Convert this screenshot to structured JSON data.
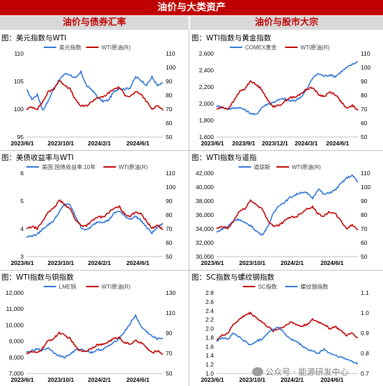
{
  "header": {
    "title": "油价与大类资产",
    "left_section": "油价与债券汇率",
    "right_section": "油价与股市大宗"
  },
  "footer": {
    "watermark": "公众号 · 能源研发中心"
  },
  "colors": {
    "blue": "#2e75d6",
    "red": "#c00000",
    "accent": "#c00000"
  },
  "chart_data": [
    {
      "type": "line",
      "title": "图：美元指数与WTI",
      "x_ticks": [
        "2023/6/1",
        "2023/10/1",
        "2024/2/1",
        "2024/6/1"
      ],
      "y_left": {
        "ticks": [
          "95",
          "100",
          "105",
          "110"
        ],
        "range": [
          95,
          110
        ]
      },
      "y_right": {
        "ticks": [
          "50",
          "60",
          "70",
          "80",
          "90",
          "100",
          "110"
        ],
        "range": [
          50,
          110
        ]
      },
      "legend_position": "top",
      "series": [
        {
          "name": "美元指数",
          "axis": "left",
          "color": "#2e75d6",
          "values": [
            103.5,
            101.8,
            102.6,
            99.8,
            101.5,
            103.8,
            105.2,
            106.4,
            106.2,
            105.5,
            106.7,
            104.2,
            103.5,
            102.2,
            101.4,
            101.6,
            103.1,
            103.8,
            103.6,
            103.9,
            105.8,
            105.2,
            104.3,
            105.8,
            104.2,
            104.7
          ]
        },
        {
          "name": "WTI原油(R)",
          "axis": "right",
          "color": "#c00000",
          "values": [
            70,
            71.5,
            70.2,
            75.5,
            82.5,
            84.5,
            90.5,
            87.5,
            84.5,
            76.5,
            72.2,
            72.4,
            75.5,
            78.5,
            78.5,
            81.5,
            84.5,
            85.8,
            80.5,
            79.2,
            82.3,
            80.7,
            75.5,
            70.2,
            72.8,
            69.2
          ]
        }
      ]
    },
    {
      "type": "line",
      "title": "图：WTI指数与黄金指数",
      "x_ticks": [
        "2023/6/1",
        "2023/9/1",
        "2023/12/1",
        "2024/3/1",
        "2024/6/1"
      ],
      "y_left": {
        "ticks": [
          "1,600",
          "1,800",
          "2,000",
          "2,200",
          "2,400",
          "2,600"
        ],
        "range": [
          1600,
          2600
        ]
      },
      "y_right": {
        "ticks": [
          "50",
          "60",
          "70",
          "80",
          "90",
          "100",
          "110"
        ],
        "range": [
          50,
          110
        ]
      },
      "legend_position": "top",
      "series": [
        {
          "name": "COMEX黄金",
          "axis": "left",
          "color": "#2e75d6",
          "values": [
            1975,
            1955,
            1935,
            1945,
            1955,
            1925,
            1885,
            1865,
            1955,
            1995,
            2015,
            2045,
            2060,
            2030,
            2040,
            2085,
            2175,
            2310,
            2360,
            2330,
            2345,
            2325,
            2380,
            2430,
            2470,
            2505
          ]
        },
        {
          "name": "WTI原油(R)",
          "axis": "right",
          "color": "#c00000",
          "values": [
            70,
            71.5,
            70.2,
            75.5,
            82.5,
            84.5,
            90.5,
            87.5,
            84.5,
            76.5,
            72.2,
            72.4,
            75.5,
            78.5,
            78.5,
            81.5,
            84.5,
            85.8,
            80.5,
            79.2,
            82.3,
            80.7,
            75.5,
            70.2,
            72.8,
            69.2
          ]
        }
      ]
    },
    {
      "type": "line",
      "title": "图：美债收益率与WTI",
      "x_ticks": [
        "2023/6/1",
        "2023/10/1",
        "2024/2/1",
        "2024/6/1"
      ],
      "y_left": {
        "ticks": [
          "3",
          "4",
          "5",
          "6"
        ],
        "range": [
          3,
          6
        ]
      },
      "y_right": {
        "ticks": [
          "50",
          "60",
          "70",
          "80",
          "90",
          "100",
          "110"
        ],
        "range": [
          50,
          110
        ]
      },
      "legend_position": "top",
      "series": [
        {
          "name": "美国:国债收益率:10年",
          "axis": "left",
          "color": "#2e75d6",
          "values": [
            3.7,
            3.75,
            3.8,
            4.0,
            4.15,
            4.3,
            4.6,
            4.9,
            4.85,
            4.45,
            4.05,
            3.95,
            4.1,
            4.25,
            4.25,
            4.3,
            4.55,
            4.65,
            4.45,
            4.35,
            4.45,
            4.3,
            4.05,
            3.85,
            4.05,
            4.2
          ]
        },
        {
          "name": "WTI原油(R)",
          "axis": "right",
          "color": "#c00000",
          "values": [
            70,
            71.5,
            70.2,
            75.5,
            82.5,
            84.5,
            90.5,
            87.5,
            84.5,
            76.5,
            72.2,
            72.4,
            75.5,
            78.5,
            78.5,
            81.5,
            84.5,
            85.8,
            80.5,
            79.2,
            82.3,
            80.7,
            75.5,
            70.2,
            72.8,
            69.2
          ]
        }
      ]
    },
    {
      "type": "line",
      "title": "图：WTI指数与道指",
      "x_ticks": [
        "2023/6/1",
        "2023/10/1",
        "2024/2/1",
        "2024/6/1"
      ],
      "y_left": {
        "ticks": [
          "30,000",
          "32,000",
          "34,000",
          "36,000",
          "38,000",
          "40,000",
          "42,000"
        ],
        "range": [
          30000,
          42000
        ]
      },
      "y_right": {
        "ticks": [
          "50",
          "60",
          "70",
          "80",
          "90",
          "100",
          "110"
        ],
        "range": [
          50,
          110
        ]
      },
      "legend_position": "top",
      "series": [
        {
          "name": "道琼斯",
          "axis": "left",
          "color": "#2e75d6",
          "values": [
            33500,
            34000,
            34300,
            35200,
            35400,
            34800,
            34500,
            33700,
            33100,
            34200,
            36100,
            37400,
            37800,
            38500,
            38900,
            39300,
            39100,
            38400,
            39800,
            38900,
            39200,
            39600,
            40500,
            41300,
            41700,
            40700
          ]
        },
        {
          "name": "WTI原油(R)",
          "axis": "right",
          "color": "#c00000",
          "values": [
            70,
            71.5,
            70.2,
            75.5,
            82.5,
            84.5,
            90.5,
            87.5,
            84.5,
            76.5,
            72.2,
            72.4,
            75.5,
            78.5,
            78.5,
            81.5,
            84.5,
            85.8,
            80.5,
            79.2,
            82.3,
            80.7,
            75.5,
            70.2,
            72.8,
            69.2
          ]
        }
      ]
    },
    {
      "type": "line",
      "title": "图：WTI指数与铜指数",
      "x_ticks": [
        "2023/6/1",
        "2023/10/1",
        "2024/2/1",
        "2024/6/1"
      ],
      "y_left": {
        "ticks": [
          "7,000",
          "8,000",
          "9,000",
          "10,000",
          "11,000",
          "12,000"
        ],
        "range": [
          7000,
          12000
        ]
      },
      "y_right": {
        "ticks": [
          "50",
          "70",
          "90",
          "110",
          "130"
        ],
        "range": [
          50,
          130
        ]
      },
      "legend_position": "top",
      "series": [
        {
          "name": "LME铜",
          "axis": "left",
          "color": "#2e75d6",
          "values": [
            8300,
            8400,
            8500,
            8450,
            8600,
            8300,
            8100,
            8000,
            8200,
            8450,
            8500,
            8400,
            8300,
            8450,
            8500,
            8700,
            8900,
            9200,
            9600,
            10100,
            10600,
            9900,
            9600,
            9300,
            9150,
            9200
          ]
        },
        {
          "name": "WTI原油(R)",
          "axis": "right",
          "color": "#c00000",
          "values": [
            70,
            71.5,
            70.2,
            75.5,
            82.5,
            84.5,
            90.5,
            87.5,
            84.5,
            76.5,
            72.2,
            72.4,
            75.5,
            78.5,
            78.5,
            81.5,
            84.5,
            85.8,
            80.5,
            79.2,
            82.3,
            80.7,
            75.5,
            70.2,
            72.8,
            69.2
          ]
        }
      ]
    },
    {
      "type": "line",
      "title": "图：SC指数与螺纹钢指数",
      "x_ticks": [
        "2023/6/1",
        "2023/10/1",
        "2024/2/1",
        "2024/6/1"
      ],
      "y_left": {
        "ticks": [
          "1.0",
          "1.2",
          "1.4",
          "1.6",
          "1.8",
          "2.0",
          "2.2",
          "2.4",
          "2.6",
          "2.8"
        ],
        "range": [
          1.0,
          2.8
        ]
      },
      "y_right": {
        "ticks": [
          "0.7",
          "0.8",
          "0.9",
          "1.0",
          "1.1"
        ],
        "range": [
          0.7,
          1.1
        ]
      },
      "legend_position": "top",
      "series": [
        {
          "name": "SC指数",
          "axis": "left",
          "color": "#c00000",
          "values": [
            1.75,
            1.85,
            1.9,
            2.1,
            2.2,
            2.3,
            2.35,
            2.25,
            2.15,
            2.05,
            1.95,
            2.0,
            2.05,
            2.15,
            2.1,
            2.05,
            2.1,
            2.2,
            2.15,
            2.1,
            2.0,
            2.05,
            1.95,
            1.85,
            1.9,
            1.8
          ]
        },
        {
          "name": "螺纹钢指数",
          "axis": "right",
          "color": "#2e75d6",
          "values": [
            0.86,
            0.88,
            0.87,
            0.9,
            0.88,
            0.86,
            0.84,
            0.86,
            0.87,
            0.9,
            0.92,
            0.93,
            0.9,
            0.87,
            0.86,
            0.84,
            0.82,
            0.81,
            0.8,
            0.82,
            0.8,
            0.79,
            0.78,
            0.77,
            0.76,
            0.75
          ]
        }
      ]
    }
  ]
}
